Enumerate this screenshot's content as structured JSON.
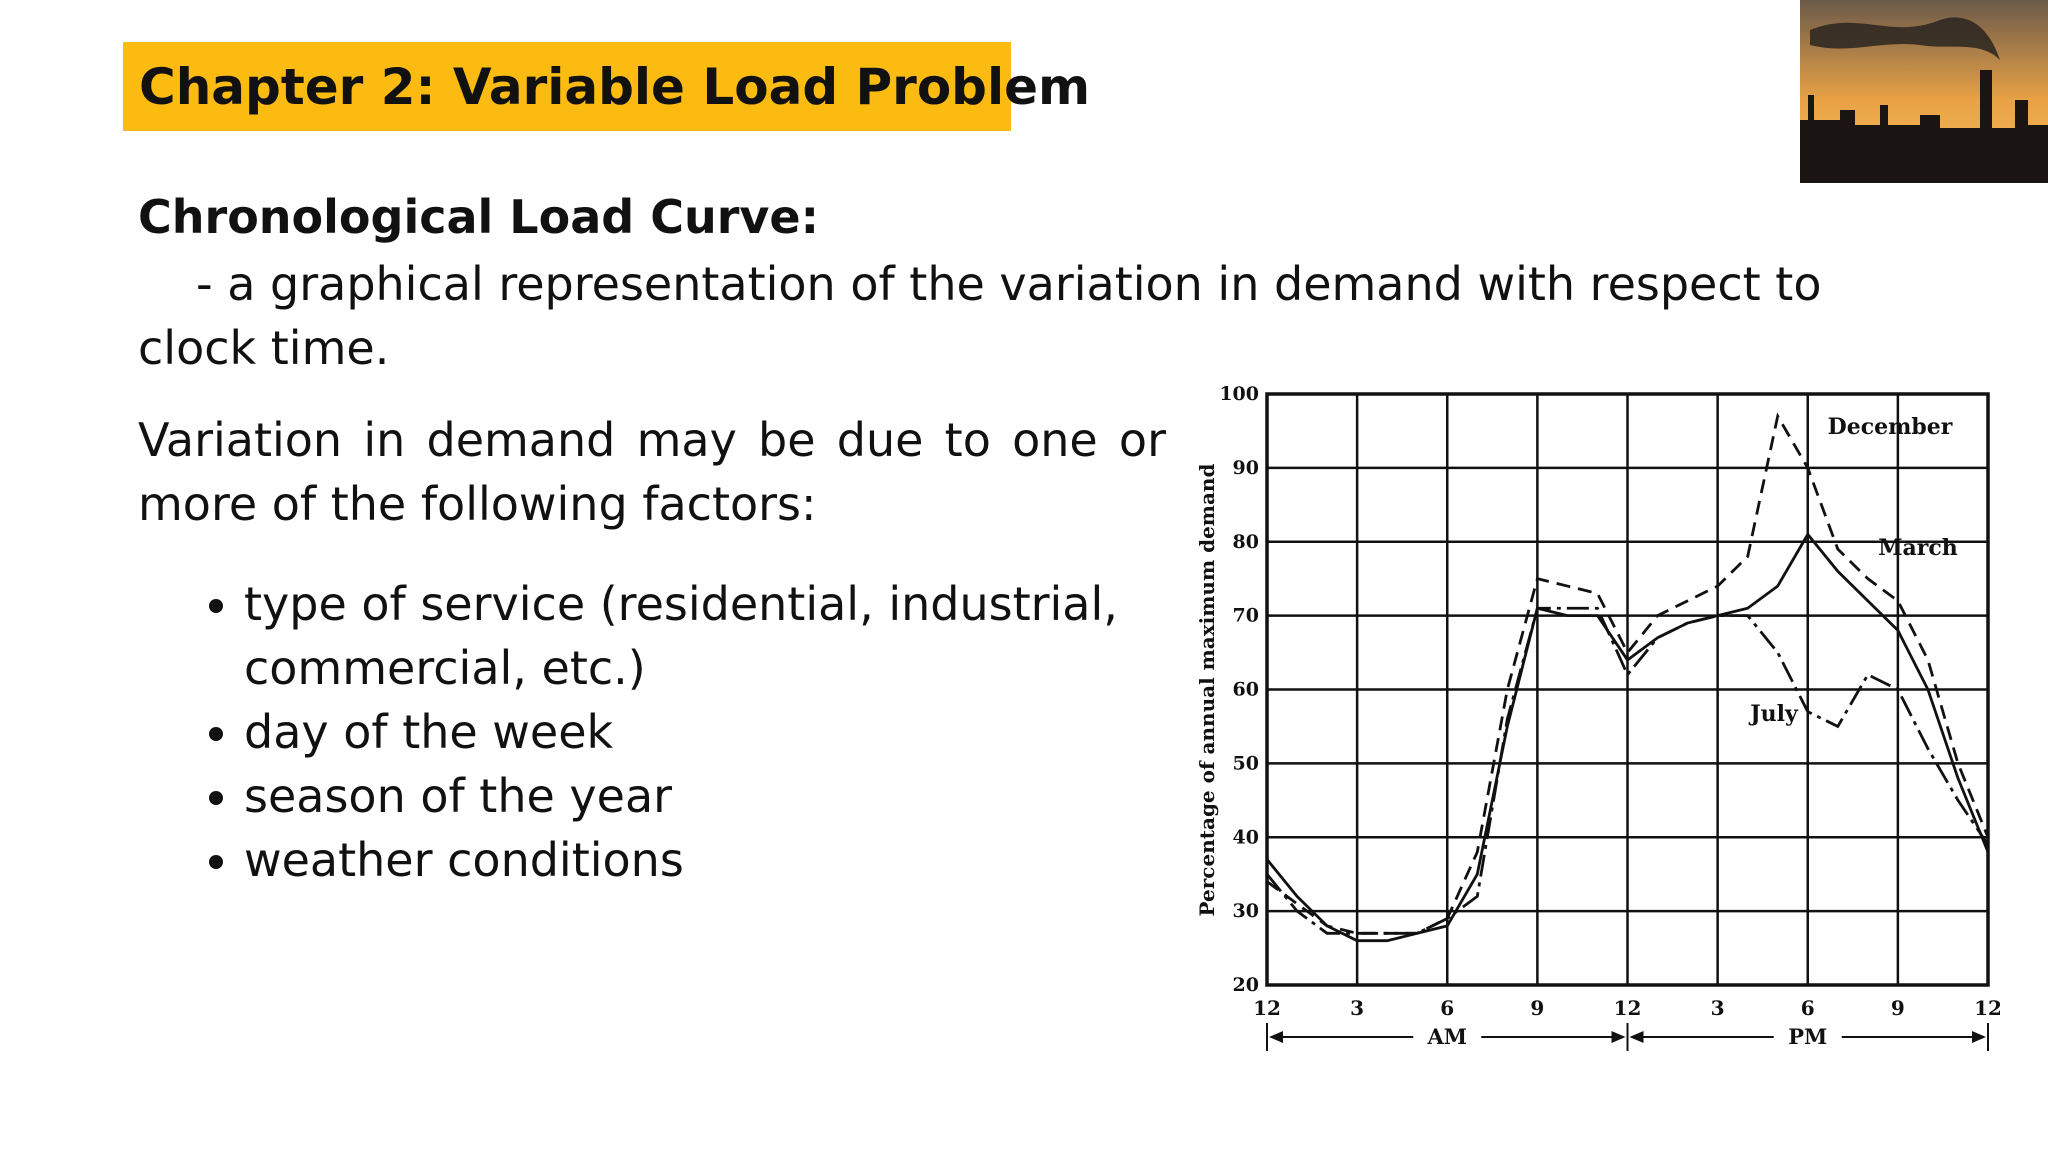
{
  "header": {
    "title": "Chapter 2: Variable Load Problem"
  },
  "heading": "Chronological Load Curve:",
  "definition": "- a graphical representation of the variation in demand with respect to clock time.",
  "paragraph": "Variation in demand may be due to one or more of the following factors:",
  "bullets": [
    "type of service (residential, industrial, commercial, etc.)",
    "day of the week",
    "season of the year",
    "weather conditions"
  ],
  "chart_data": {
    "type": "line",
    "y_label": "Percentage of annual maximum demand",
    "period_labels": [
      "AM",
      "PM"
    ],
    "x": [
      0,
      1,
      2,
      3,
      4,
      5,
      6,
      7,
      8,
      9,
      10,
      11,
      12,
      13,
      14,
      15,
      16,
      17,
      18,
      19,
      20,
      21,
      22,
      23,
      24
    ],
    "series": [
      {
        "name": "December",
        "color": "#111111",
        "dash": "14 8",
        "values": [
          34,
          31,
          28,
          27,
          27,
          27,
          29,
          38,
          60,
          75,
          74,
          73,
          65,
          70,
          72,
          74,
          78,
          97,
          90,
          79,
          75,
          72,
          64,
          50,
          40
        ]
      },
      {
        "name": "March",
        "color": "#111111",
        "dash": "none",
        "values": [
          37,
          32,
          28,
          26,
          26,
          27,
          28,
          35,
          55,
          71,
          70,
          70,
          64,
          67,
          69,
          70,
          71,
          74,
          81,
          76,
          72,
          68,
          60,
          48,
          38
        ]
      },
      {
        "name": "July",
        "color": "#111111",
        "dash": "22 6 4 6",
        "values": [
          35,
          30,
          27,
          27,
          27,
          27,
          29,
          32,
          56,
          71,
          71,
          71,
          62,
          67,
          69,
          70,
          70,
          65,
          57,
          55,
          62,
          60,
          52,
          45,
          39
        ]
      }
    ],
    "xlim": [
      0,
      24
    ],
    "xticks": [
      {
        "value": 0,
        "label": "12"
      },
      3,
      6,
      9,
      {
        "value": 12,
        "label": "12"
      },
      {
        "value": 15,
        "label": "3"
      },
      {
        "value": 18,
        "label": "6"
      },
      {
        "value": 21,
        "label": "9"
      },
      {
        "value": 24,
        "label": "12"
      }
    ],
    "ylim": [
      20,
      100
    ],
    "yticks": [
      20,
      30,
      40,
      50,
      60,
      70,
      80,
      90,
      100
    ],
    "grid": true
  }
}
